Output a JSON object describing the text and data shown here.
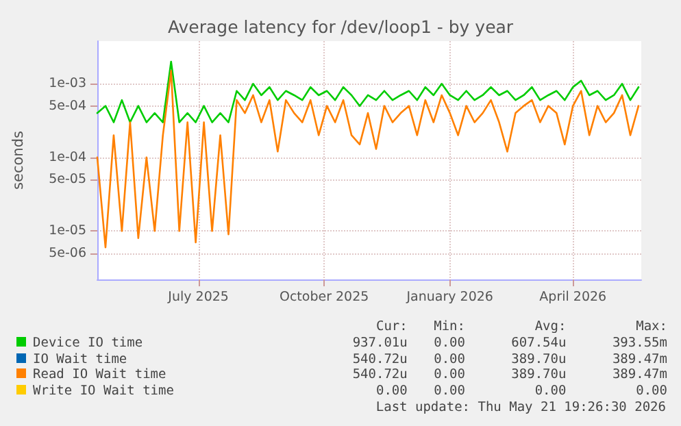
{
  "chart_data": {
    "type": "line",
    "title": "Average latency for /dev/loop1 - by year",
    "ylabel": "seconds",
    "log": "y",
    "grid": true,
    "legend": "bottom",
    "marker": "none",
    "line_style": "solid",
    "xlim": [
      "2025-04-18",
      "2026-05-21"
    ],
    "xticks": [
      {
        "value": "2025-07-01",
        "label": "July 2025"
      },
      {
        "value": "2025-10-01",
        "label": "October 2025"
      },
      {
        "value": "2026-01-01",
        "label": "January 2026"
      },
      {
        "value": "2026-04-01",
        "label": "April 2026"
      }
    ],
    "ylim": [
      2.2e-06,
      0.0038
    ],
    "yticks": [
      {
        "value": 5e-06,
        "label": "5e-06"
      },
      {
        "value": 1e-05,
        "label": "1e-05"
      },
      {
        "value": 5e-05,
        "label": "5e-05"
      },
      {
        "value": 0.0001,
        "label": "1e-04"
      },
      {
        "value": 0.0005,
        "label": "5e-04"
      },
      {
        "value": 0.001,
        "label": "1e-03"
      }
    ],
    "x": [
      "2025-04-18",
      "2025-04-24",
      "2025-04-30",
      "2025-05-06",
      "2025-05-12",
      "2025-05-18",
      "2025-05-24",
      "2025-05-30",
      "2025-06-05",
      "2025-06-11",
      "2025-06-17",
      "2025-06-23",
      "2025-06-29",
      "2025-07-05",
      "2025-07-11",
      "2025-07-17",
      "2025-07-23",
      "2025-07-29",
      "2025-08-04",
      "2025-08-10",
      "2025-08-16",
      "2025-08-22",
      "2025-08-28",
      "2025-09-03",
      "2025-09-09",
      "2025-09-15",
      "2025-09-21",
      "2025-09-27",
      "2025-10-03",
      "2025-10-09",
      "2025-10-15",
      "2025-10-21",
      "2025-10-27",
      "2025-11-02",
      "2025-11-08",
      "2025-11-14",
      "2025-11-20",
      "2025-11-26",
      "2025-12-02",
      "2025-12-08",
      "2025-12-14",
      "2025-12-20",
      "2025-12-26",
      "2026-01-01",
      "2026-01-07",
      "2026-01-13",
      "2026-01-19",
      "2026-01-25",
      "2026-01-31",
      "2026-02-06",
      "2026-02-12",
      "2026-02-18",
      "2026-02-24",
      "2026-03-02",
      "2026-03-08",
      "2026-03-14",
      "2026-03-20",
      "2026-03-26",
      "2026-04-01",
      "2026-04-07",
      "2026-04-13",
      "2026-04-19",
      "2026-04-25",
      "2026-05-01",
      "2026-05-07",
      "2026-05-13",
      "2026-05-19"
    ],
    "series": [
      {
        "name": "Device IO time",
        "color": "#00cc00",
        "values": [
          0.0004,
          0.0005,
          0.0003,
          0.0006,
          0.0003,
          0.0005,
          0.0003,
          0.0004,
          0.0003,
          0.002,
          0.0003,
          0.0004,
          0.0003,
          0.0005,
          0.0003,
          0.0004,
          0.0003,
          0.0008,
          0.0006,
          0.001,
          0.0007,
          0.0009,
          0.0006,
          0.0008,
          0.0007,
          0.0006,
          0.0009,
          0.0007,
          0.0008,
          0.0006,
          0.0009,
          0.0007,
          0.0005,
          0.0007,
          0.0006,
          0.0008,
          0.0006,
          0.0007,
          0.0008,
          0.0006,
          0.0009,
          0.0007,
          0.001,
          0.0007,
          0.0006,
          0.0008,
          0.0006,
          0.0007,
          0.0009,
          0.0007,
          0.0008,
          0.0006,
          0.0007,
          0.0009,
          0.0006,
          0.0007,
          0.0008,
          0.0006,
          0.0009,
          0.0011,
          0.0007,
          0.0008,
          0.0006,
          0.0007,
          0.001,
          0.0006,
          0.0009
        ]
      },
      {
        "name": "IO Wait time",
        "color": "#0066b3",
        "values": [
          null,
          null,
          null,
          null,
          null,
          null,
          null,
          null,
          null,
          null,
          null,
          null,
          null,
          null,
          null,
          null,
          null,
          null,
          null,
          null,
          null,
          null,
          null,
          null,
          null,
          null,
          null,
          null,
          null,
          null,
          null,
          null,
          null,
          null,
          null,
          null,
          null,
          null,
          null,
          null,
          null,
          null,
          null,
          null,
          null,
          null,
          null,
          null,
          null,
          null,
          null,
          null,
          null,
          null,
          null,
          null,
          null,
          null,
          null,
          null,
          null,
          null,
          null,
          null,
          null,
          null,
          null
        ]
      },
      {
        "name": "Read IO Wait time",
        "color": "#ff8000",
        "values": [
          0.0001,
          6e-06,
          0.0002,
          1e-05,
          0.0003,
          8e-06,
          0.0001,
          1e-05,
          0.0002,
          0.0015,
          1e-05,
          0.0003,
          7e-06,
          0.0003,
          1e-05,
          0.0002,
          9e-06,
          0.0006,
          0.0004,
          0.0007,
          0.0003,
          0.0006,
          0.00012,
          0.0006,
          0.0004,
          0.0003,
          0.0006,
          0.0002,
          0.0005,
          0.0003,
          0.0006,
          0.0002,
          0.00015,
          0.0004,
          0.00013,
          0.0005,
          0.0003,
          0.0004,
          0.0005,
          0.0002,
          0.0006,
          0.0003,
          0.0007,
          0.0004,
          0.0002,
          0.0005,
          0.0003,
          0.0004,
          0.0006,
          0.0003,
          0.00012,
          0.0004,
          0.0005,
          0.0006,
          0.0003,
          0.0005,
          0.0004,
          0.00015,
          0.0005,
          0.0008,
          0.0002,
          0.0005,
          0.0003,
          0.0004,
          0.0007,
          0.0002,
          0.0005
        ]
      },
      {
        "name": "Write IO Wait time",
        "color": "#ffcc00",
        "values": [
          null,
          null,
          null,
          null,
          null,
          null,
          null,
          null,
          null,
          null,
          null,
          null,
          null,
          null,
          null,
          null,
          null,
          null,
          null,
          null,
          null,
          null,
          null,
          null,
          null,
          null,
          null,
          null,
          null,
          null,
          null,
          null,
          null,
          null,
          null,
          null,
          null,
          null,
          null,
          null,
          null,
          null,
          null,
          null,
          null,
          null,
          null,
          null,
          null,
          null,
          null,
          null,
          null,
          null,
          null,
          null,
          null,
          null,
          null,
          null,
          null,
          null,
          null,
          null,
          null,
          null,
          null
        ]
      }
    ],
    "annotations": [
      "Cur:",
      "Min:",
      "Avg:",
      "Max:",
      "937.01u",
      "0.00",
      "607.54u",
      "393.55m",
      "540.72u",
      "0.00",
      "389.70u",
      "389.47m",
      "540.72u",
      "0.00",
      "389.70u",
      "389.47m",
      "0.00",
      "0.00",
      "0.00",
      "0.00",
      "Last update: Thu May 21 19:26:30 2026"
    ]
  }
}
